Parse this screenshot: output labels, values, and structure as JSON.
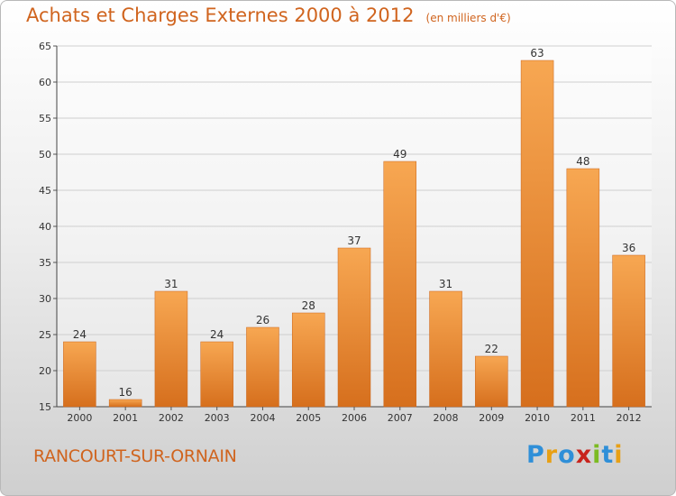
{
  "header": {
    "title": "Achats et Charges Externes 2000 à 2012",
    "subtitle": "(en milliers d'€)"
  },
  "footer": {
    "place": "RANCOURT-SUR-ORNAIN",
    "logo": "Proxiti"
  },
  "colors": {
    "bar_light": "#f7a752",
    "bar_dark": "#d66f1d",
    "title": "#d0641e"
  },
  "chart_data": {
    "type": "bar",
    "title": "Achats et Charges Externes 2000 à 2012",
    "subtitle": "(en milliers d'€)",
    "xlabel": "",
    "ylabel": "",
    "categories": [
      "2000",
      "2001",
      "2002",
      "2003",
      "2004",
      "2005",
      "2006",
      "2007",
      "2008",
      "2009",
      "2010",
      "2011",
      "2012"
    ],
    "values": [
      24,
      16,
      31,
      24,
      26,
      28,
      37,
      49,
      31,
      22,
      63,
      48,
      36
    ],
    "ylim": [
      15,
      65
    ],
    "yticks": [
      15,
      20,
      25,
      30,
      35,
      40,
      45,
      50,
      55,
      60,
      65
    ],
    "grid": true,
    "legend": "none"
  }
}
